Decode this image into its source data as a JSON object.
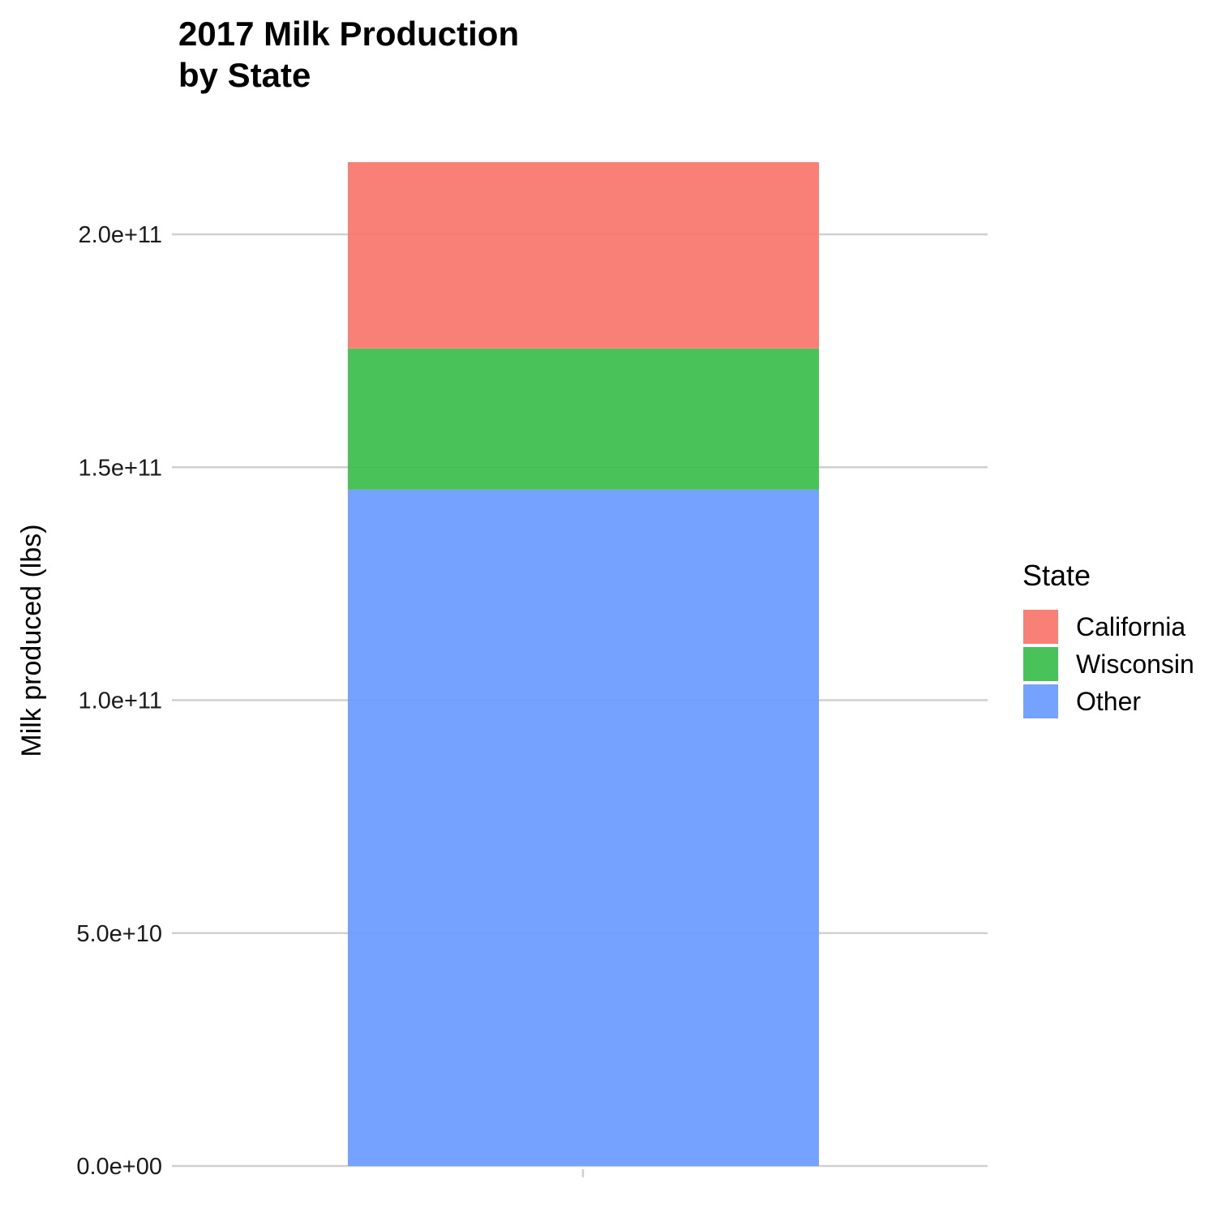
{
  "chart_data": {
    "type": "bar",
    "stacked": true,
    "title_lines": [
      "2017 Milk Production",
      "by State"
    ],
    "xlabel": "",
    "ylabel": "Milk produced (lbs)",
    "categories": [
      ""
    ],
    "series": [
      {
        "name": "California",
        "values": [
          40000000000
        ],
        "color": "#F8766D"
      },
      {
        "name": "Wisconsin",
        "values": [
          30300000000
        ],
        "color": "#3CBD4D"
      },
      {
        "name": "Other",
        "values": [
          145200000000
        ],
        "color": "#6B9BFF"
      }
    ],
    "stack_order_bottom_to_top": [
      "Other",
      "Wisconsin",
      "California"
    ],
    "ylim": [
      0,
      215500000000
    ],
    "yticks": [
      0,
      50000000000,
      100000000000,
      150000000000,
      200000000000
    ],
    "ytick_labels": [
      "0.0e+00",
      "5.0e+10",
      "1.0e+11",
      "1.5e+11",
      "2.0e+11"
    ],
    "grid": true,
    "legend": {
      "title": "State",
      "position": "right",
      "entries": [
        "California",
        "Wisconsin",
        "Other"
      ]
    }
  }
}
